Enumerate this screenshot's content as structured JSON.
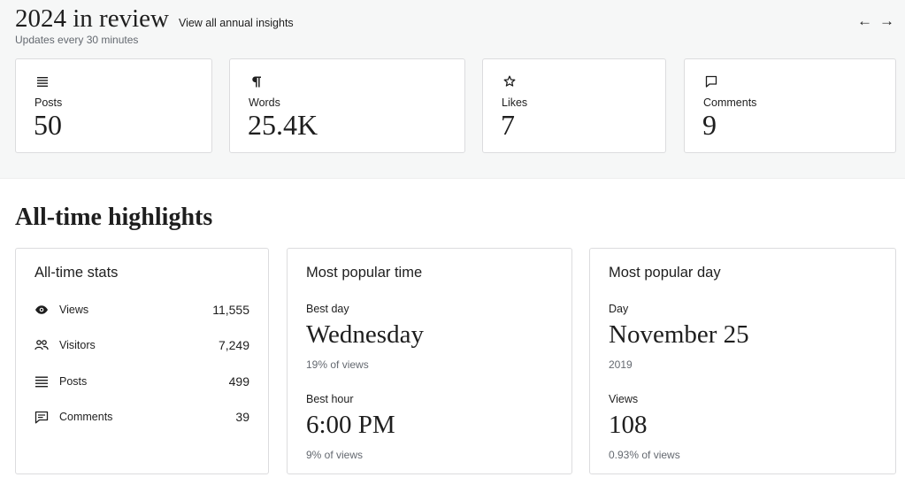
{
  "header": {
    "title": "2024 in review",
    "annual_link": "View all annual insights",
    "updates": "Updates every 30 minutes",
    "prev_arrow": "←",
    "next_arrow": "→"
  },
  "summary_cards": [
    {
      "icon": "posts-icon",
      "label": "Posts",
      "value": "50"
    },
    {
      "icon": "paragraph-icon",
      "label": "Words",
      "value": "25.4K"
    },
    {
      "icon": "star-icon",
      "label": "Likes",
      "value": "7"
    },
    {
      "icon": "comment-icon",
      "label": "Comments",
      "value": "9"
    }
  ],
  "highlights": {
    "title": "All-time highlights",
    "all_time_stats": {
      "title": "All-time stats",
      "rows": [
        {
          "icon": "eye-icon",
          "label": "Views",
          "value": "11,555"
        },
        {
          "icon": "people-icon",
          "label": "Visitors",
          "value": "7,249"
        },
        {
          "icon": "posts-icon",
          "label": "Posts",
          "value": "499"
        },
        {
          "icon": "comment-icon",
          "label": "Comments",
          "value": "39"
        }
      ]
    },
    "popular_time": {
      "title": "Most popular time",
      "best_day_label": "Best day",
      "best_day_value": "Wednesday",
      "best_day_sub": "19% of views",
      "best_hour_label": "Best hour",
      "best_hour_value": "6:00 PM",
      "best_hour_sub": "9% of views"
    },
    "popular_day": {
      "title": "Most popular day",
      "day_label": "Day",
      "day_value": "November 25",
      "day_sub": "2019",
      "views_label": "Views",
      "views_value": "108",
      "views_sub": "0.93% of views"
    }
  }
}
